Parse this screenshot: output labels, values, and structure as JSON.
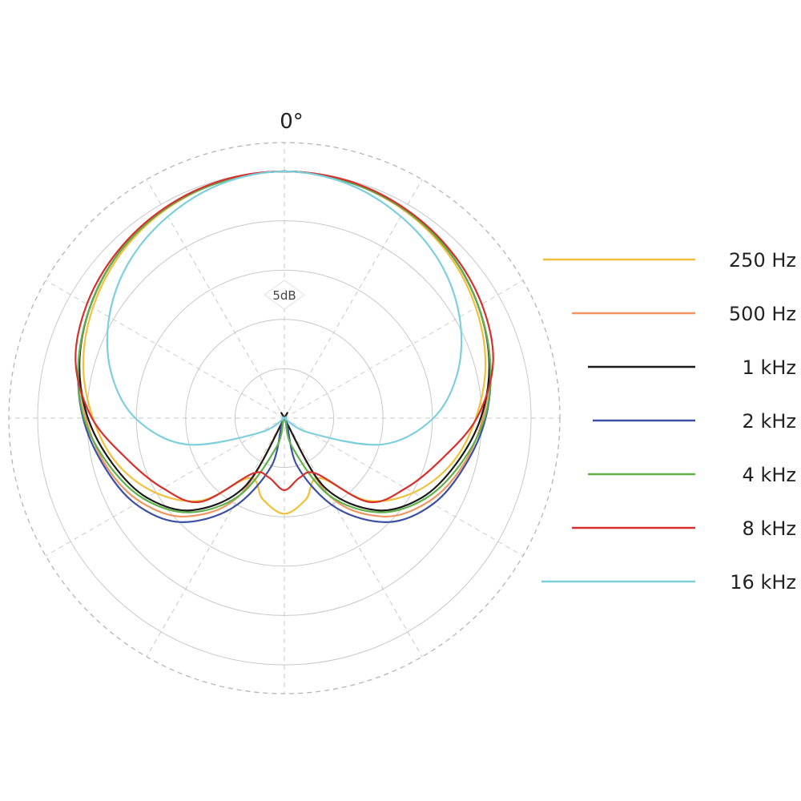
{
  "chart_data": {
    "type": "polar-line",
    "angle_label": "0°",
    "ring_label": "5dB",
    "range_db": [
      -25,
      0
    ],
    "ring_step_db": 5,
    "spoke_step_deg": 30,
    "grid": true,
    "legend_position": "right",
    "angles_deg": [
      0,
      15,
      30,
      45,
      60,
      75,
      90,
      105,
      120,
      135,
      150,
      165,
      180
    ],
    "series": [
      {
        "name": "250 Hz",
        "color": "#f2c03a",
        "values_db": [
          0,
          -0.2,
          -0.7,
          -1.5,
          -2.6,
          -3.9,
          -5.6,
          -7.4,
          -9.9,
          -13.2,
          -18.0,
          -16.5,
          -15.3
        ]
      },
      {
        "name": "500 Hz",
        "color": "#ef9660",
        "values_db": [
          0,
          -0.2,
          -0.6,
          -1.3,
          -2.3,
          -3.5,
          -4.9,
          -6.3,
          -8.1,
          -10.9,
          -16.0,
          -25.0,
          -25.0
        ]
      },
      {
        "name": "1 kHz",
        "color": "#1a1a1a",
        "values_db": [
          0,
          -0.2,
          -0.6,
          -1.3,
          -2.3,
          -3.5,
          -5.1,
          -7.0,
          -8.9,
          -11.8,
          -17.0,
          -25.0,
          -25.0
        ]
      },
      {
        "name": "2 kHz",
        "color": "#3b4fa3",
        "values_db": [
          0,
          -0.2,
          -0.6,
          -1.3,
          -2.3,
          -3.4,
          -4.6,
          -6.1,
          -7.6,
          -10.1,
          -14.5,
          -20.0,
          -25.0
        ]
      },
      {
        "name": "4 kHz",
        "color": "#5fb24a",
        "values_db": [
          0,
          -0.2,
          -0.6,
          -1.3,
          -2.3,
          -3.4,
          -4.7,
          -6.6,
          -8.6,
          -11.5,
          -16.0,
          -22.0,
          -25.0
        ]
      },
      {
        "name": "8 kHz",
        "color": "#d6302e",
        "values_db": [
          0,
          -0.1,
          -0.5,
          -1.1,
          -1.9,
          -3.1,
          -5.5,
          -8.6,
          -10.8,
          -13.0,
          -18.5,
          -18.8,
          -17.7
        ]
      },
      {
        "name": "16 kHz",
        "color": "#7ccfdc",
        "values_db": [
          0,
          -0.4,
          -1.4,
          -2.7,
          -4.5,
          -6.8,
          -9.9,
          -14.7,
          -22.0,
          -25.0,
          -25.0,
          -25.0,
          -25.0
        ]
      }
    ]
  }
}
